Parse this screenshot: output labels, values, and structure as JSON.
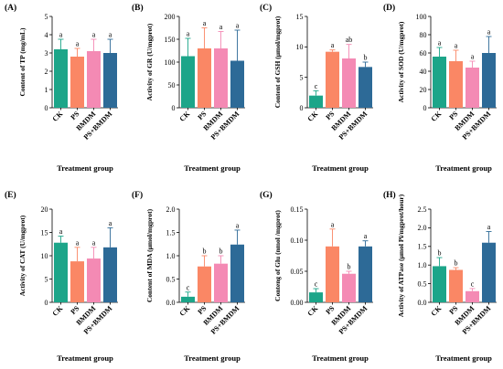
{
  "chart_data": [
    {
      "panel_label": "(A)",
      "type": "bar",
      "categories": [
        "CK",
        "PS",
        "BMDM",
        "PS+BMDM"
      ],
      "values": [
        3.2,
        2.8,
        3.1,
        3.0
      ],
      "errors": [
        0.55,
        0.45,
        0.65,
        0.75
      ],
      "letters": [
        "a",
        "a",
        "a",
        "a"
      ],
      "ylabel": "Content of TP (mg/mL)",
      "xlabel": "Treatment group",
      "ylim": [
        0,
        5
      ],
      "yticks": [
        "0",
        "1",
        "2",
        "3",
        "4",
        "5"
      ],
      "colors": [
        "#1ca589",
        "#fa8765",
        "#f48ab4",
        "#2d6a97"
      ]
    },
    {
      "panel_label": "(B)",
      "type": "bar",
      "categories": [
        "CK",
        "PS",
        "BMDM",
        "PS+BMDM"
      ],
      "values": [
        113,
        130,
        130,
        103
      ],
      "errors": [
        39,
        45,
        37,
        67
      ],
      "letters": [
        "a",
        "a",
        "a",
        "a"
      ],
      "ylabel": "Activity of GR (U/mgprot)",
      "xlabel": "Treatment group",
      "ylim": [
        0,
        200
      ],
      "yticks": [
        "0",
        "50",
        "100",
        "150",
        "200"
      ],
      "colors": [
        "#1ca589",
        "#fa8765",
        "#f48ab4",
        "#2d6a97"
      ]
    },
    {
      "panel_label": "(C)",
      "type": "bar",
      "categories": [
        "CK",
        "PS",
        "BMDM",
        "PS+BMDM"
      ],
      "values": [
        2.0,
        9.2,
        8.1,
        6.7
      ],
      "errors": [
        0.8,
        0.3,
        2.3,
        0.8
      ],
      "letters": [
        "c",
        "a",
        "ab",
        "b"
      ],
      "ylabel": "Content of GSH (μmol/mgprot)",
      "xlabel": "Treatment group",
      "ylim": [
        0,
        15
      ],
      "yticks": [
        "0",
        "5",
        "10",
        "15"
      ],
      "colors": [
        "#1ca589",
        "#fa8765",
        "#f48ab4",
        "#2d6a97"
      ]
    },
    {
      "panel_label": "(D)",
      "type": "bar",
      "categories": [
        "CK",
        "PS",
        "BMDM",
        "PS+BMDM"
      ],
      "values": [
        56,
        51,
        44,
        60
      ],
      "errors": [
        10,
        12,
        7,
        18
      ],
      "letters": [
        "a",
        "a",
        "a",
        "a"
      ],
      "ylabel": "Activity of SOD (U/mgprot)",
      "xlabel": "Treatment group",
      "ylim": [
        0,
        100
      ],
      "yticks": [
        "0",
        "20",
        "40",
        "60",
        "80",
        "100"
      ],
      "colors": [
        "#1ca589",
        "#fa8765",
        "#f48ab4",
        "#2d6a97"
      ]
    },
    {
      "panel_label": "(E)",
      "type": "bar",
      "categories": [
        "CK",
        "PS",
        "BMDM",
        "PS+BMDM"
      ],
      "values": [
        12.8,
        8.8,
        9.4,
        11.8
      ],
      "errors": [
        1.4,
        3.0,
        2.4,
        4.2
      ],
      "letters": [
        "a",
        "a",
        "a",
        "a"
      ],
      "ylabel": "Activity of CAT (U/mgprot)",
      "xlabel": "Treatment group",
      "ylim": [
        0,
        20
      ],
      "yticks": [
        "0",
        "5",
        "10",
        "15",
        "20"
      ],
      "colors": [
        "#1ca589",
        "#fa8765",
        "#f48ab4",
        "#2d6a97"
      ]
    },
    {
      "panel_label": "(F)",
      "type": "bar",
      "categories": [
        "CK",
        "PS",
        "BMDM",
        "PS+BMDM"
      ],
      "values": [
        0.12,
        0.77,
        0.83,
        1.24
      ],
      "errors": [
        0.1,
        0.23,
        0.17,
        0.31
      ],
      "letters": [
        "c",
        "b",
        "b",
        "a"
      ],
      "ylabel": "Content of MDA (μmol/mgprot)",
      "xlabel": "Treatment group",
      "ylim": [
        0,
        2.0
      ],
      "yticks": [
        "0.0",
        "0.5",
        "1.0",
        "1.5",
        "2.0"
      ],
      "colors": [
        "#1ca589",
        "#fa8765",
        "#f48ab4",
        "#2d6a97"
      ]
    },
    {
      "panel_label": "(G)",
      "type": "bar",
      "categories": [
        "CK",
        "PS",
        "BMDM",
        "PS+BMDM"
      ],
      "values": [
        0.016,
        0.09,
        0.046,
        0.09
      ],
      "errors": [
        0.006,
        0.028,
        0.004,
        0.009
      ],
      "letters": [
        "c",
        "a",
        "b",
        "a"
      ],
      "ylabel": "Conteng of Glu (nmol /mgprot)",
      "xlabel": "Treatment group",
      "ylim": [
        0,
        0.15
      ],
      "yticks": [
        "0.00",
        "0.05",
        "0.10",
        "0.15"
      ],
      "colors": [
        "#1ca589",
        "#fa8765",
        "#f48ab4",
        "#2d6a97"
      ]
    },
    {
      "panel_label": "(H)",
      "type": "bar",
      "categories": [
        "CK",
        "PS",
        "BMDM",
        "PS+BMDM"
      ],
      "values": [
        0.97,
        0.87,
        0.3,
        1.6
      ],
      "errors": [
        0.23,
        0.06,
        0.07,
        0.3
      ],
      "letters": [
        "b",
        "b",
        "c",
        "a"
      ],
      "ylabel": "Activity of ATPase (μmol Pi/mgprot/hour)",
      "xlabel": "Treatment group",
      "ylim": [
        0,
        2.5
      ],
      "yticks": [
        "0.0",
        "0.5",
        "1.0",
        "1.5",
        "2.0",
        "2.5"
      ],
      "colors": [
        "#1ca589",
        "#fa8765",
        "#f48ab4",
        "#2d6a97"
      ]
    }
  ]
}
